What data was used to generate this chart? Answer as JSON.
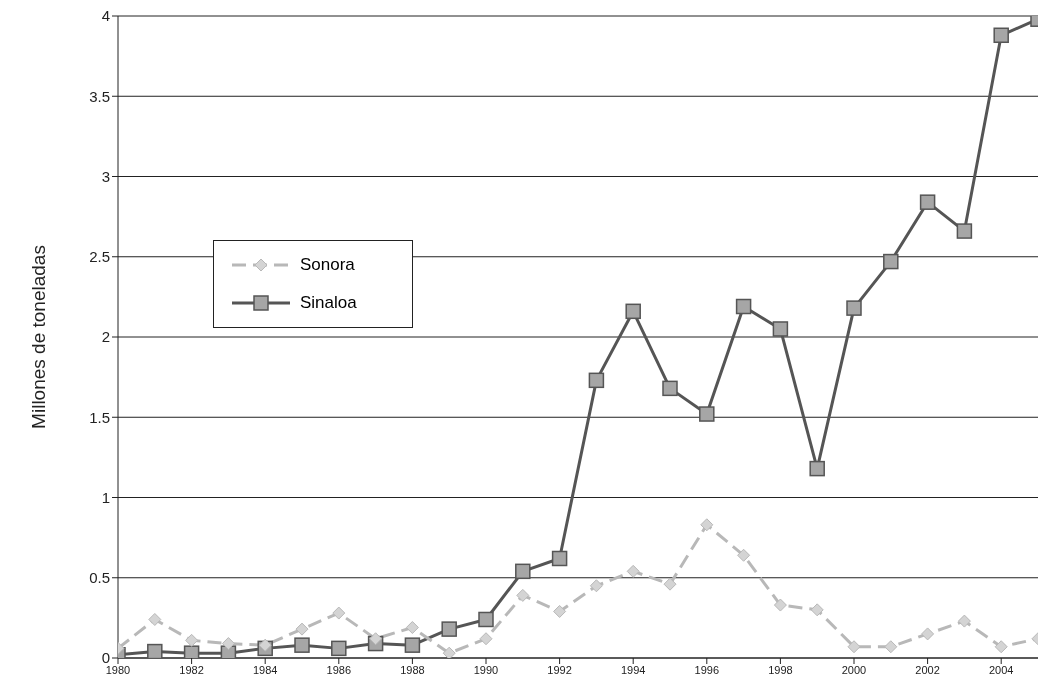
{
  "chart_data": {
    "type": "line",
    "ylabel": "Millones de toneladas",
    "x": [
      1980,
      1981,
      1982,
      1983,
      1984,
      1985,
      1986,
      1987,
      1988,
      1989,
      1990,
      1991,
      1992,
      1993,
      1994,
      1995,
      1996,
      1997,
      1998,
      1999,
      2000,
      2001,
      2002,
      2003,
      2004,
      2005
    ],
    "xlim": [
      1980,
      2005
    ],
    "xticks": [
      1980,
      1982,
      1984,
      1986,
      1988,
      1990,
      1992,
      1994,
      1996,
      1998,
      2000,
      2002,
      2004
    ],
    "ylim": [
      0,
      4
    ],
    "yticks": [
      0,
      0.5,
      1,
      1.5,
      2,
      2.5,
      3,
      3.5,
      4
    ],
    "grid": "y",
    "legend": "left",
    "series": [
      {
        "name": "Sonora",
        "color": "#b8b8b8",
        "marker": "diamond",
        "line_style": "dashed",
        "values": [
          0.06,
          0.24,
          0.11,
          0.09,
          0.08,
          0.18,
          0.28,
          0.12,
          0.19,
          0.03,
          0.12,
          0.39,
          0.29,
          0.45,
          0.54,
          0.46,
          0.83,
          0.64,
          0.33,
          0.3,
          0.07,
          0.07,
          0.15,
          0.23,
          0.07,
          0.12
        ]
      },
      {
        "name": "Sinaloa",
        "color": "#555555",
        "marker": "square",
        "line_style": "solid",
        "values": [
          0.02,
          0.04,
          0.03,
          0.03,
          0.06,
          0.08,
          0.06,
          0.09,
          0.08,
          0.18,
          0.24,
          0.54,
          0.62,
          1.73,
          2.16,
          1.68,
          1.52,
          2.19,
          2.05,
          1.18,
          2.18,
          2.47,
          2.84,
          2.66,
          3.88,
          3.98
        ]
      }
    ]
  }
}
